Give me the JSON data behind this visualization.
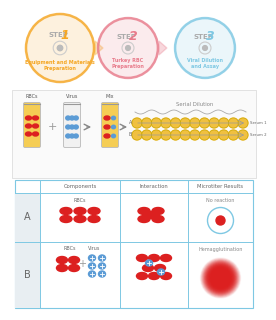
{
  "step1_color": "#F5A623",
  "step1_sub": "Equipment and Materials\nPreparation",
  "step2_color": "#E87B8B",
  "step2_sub": "Turkey RBC\nPreparation",
  "step3_color": "#7EC8E3",
  "step3_sub": "Viral Dilution\nand Assay",
  "bg_color": "#FFFFFF",
  "tube_yellow": "#F5C842",
  "rbc_red": "#DC2020",
  "virus_blue": "#5B9BD5",
  "well_yellow": "#F0C040",
  "table_border": "#7EC8E3",
  "serial_dilution_label": "Serial Dilution",
  "serum1_label": "Serum 1",
  "serum2_label": "Serum 2",
  "col_components": "Components",
  "col_interaction": "Interaction",
  "col_microtiter": "Microtiter Results",
  "no_reaction_label": "No reaction",
  "hemagglutination_label": "Hemagglutination"
}
